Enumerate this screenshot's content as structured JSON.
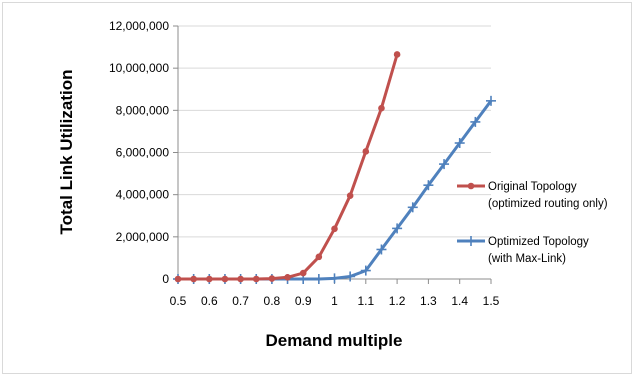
{
  "chart_data": {
    "type": "line",
    "title": "",
    "xlabel": "Demand multiple",
    "ylabel": "Total Link Utilization",
    "xlim": [
      0.5,
      1.5
    ],
    "ylim": [
      0,
      12000000
    ],
    "x_ticks": [
      "0.5",
      "0.6",
      "0.7",
      "0.8",
      "0.9",
      "1",
      "1.1",
      "1.2",
      "1.3",
      "1.4",
      "1.5"
    ],
    "y_ticks": [
      "0",
      "2,000,000",
      "4,000,000",
      "6,000,000",
      "8,000,000",
      "10,000,000",
      "12,000,000"
    ],
    "grid": "horizontal",
    "legend_position": "right",
    "series": [
      {
        "name": "Original Topology (optimized routing only)",
        "legend_lines": [
          "Original Topology",
          "(optimized routing only)"
        ],
        "color": "#c0504d",
        "marker": "circle",
        "x": [
          0.5,
          0.55,
          0.6,
          0.65,
          0.7,
          0.75,
          0.8,
          0.85,
          0.9,
          0.95,
          1.0,
          1.05,
          1.1,
          1.15,
          1.2
        ],
        "y": [
          0,
          0,
          0,
          0,
          0,
          0,
          20000,
          80000,
          280000,
          1050000,
          2380000,
          3950000,
          6050000,
          8100000,
          10650000
        ]
      },
      {
        "name": "Optimized Topology (with Max-Link)",
        "legend_lines": [
          "Optimized Topology",
          "(with Max-Link)"
        ],
        "color": "#4f81bd",
        "marker": "plus",
        "x": [
          0.5,
          0.55,
          0.6,
          0.65,
          0.7,
          0.75,
          0.8,
          0.85,
          0.9,
          0.95,
          1.0,
          1.05,
          1.1,
          1.15,
          1.2,
          1.25,
          1.3,
          1.35,
          1.4,
          1.45,
          1.5
        ],
        "y": [
          0,
          0,
          0,
          0,
          0,
          0,
          0,
          0,
          0,
          0,
          30000,
          120000,
          400000,
          1400000,
          2400000,
          3400000,
          4450000,
          5450000,
          6450000,
          7450000,
          8450000
        ]
      }
    ]
  }
}
